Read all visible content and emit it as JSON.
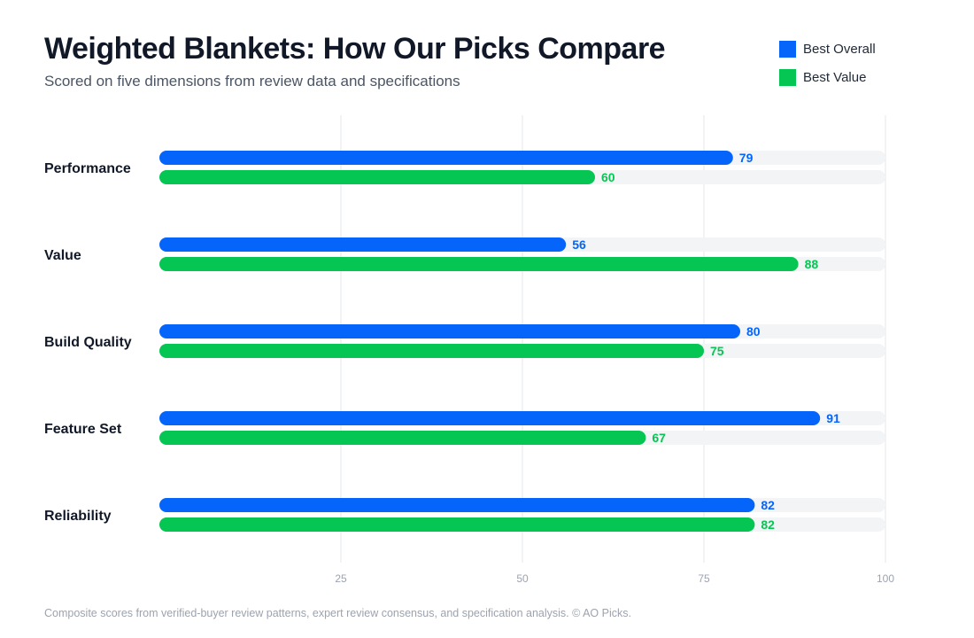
{
  "header": {
    "title": "Weighted Blankets: How Our Picks Compare",
    "subtitle": "Scored on five dimensions from review data and specifications"
  },
  "colors": {
    "best_overall": "#0565fa",
    "best_value": "#06c653",
    "track": "#f3f4f6",
    "grid": "#e5e7eb",
    "tick": "#9ca3af"
  },
  "footer": {
    "note": "Composite scores from verified-buyer review patterns, expert review consensus, and specification analysis. © AO Picks."
  },
  "chart_data": {
    "type": "bar",
    "orientation": "horizontal",
    "categories": [
      "Performance",
      "Value",
      "Build Quality",
      "Feature Set",
      "Reliability"
    ],
    "series": [
      {
        "name": "Best Overall",
        "values": [
          79,
          56,
          80,
          91,
          82
        ]
      },
      {
        "name": "Best Value",
        "values": [
          60,
          88,
          75,
          67,
          82
        ]
      }
    ],
    "xlim": [
      0,
      100
    ],
    "xticks": [
      25,
      50,
      75,
      100
    ],
    "grid": true,
    "legend_position": "top-right",
    "data_labels": true
  }
}
